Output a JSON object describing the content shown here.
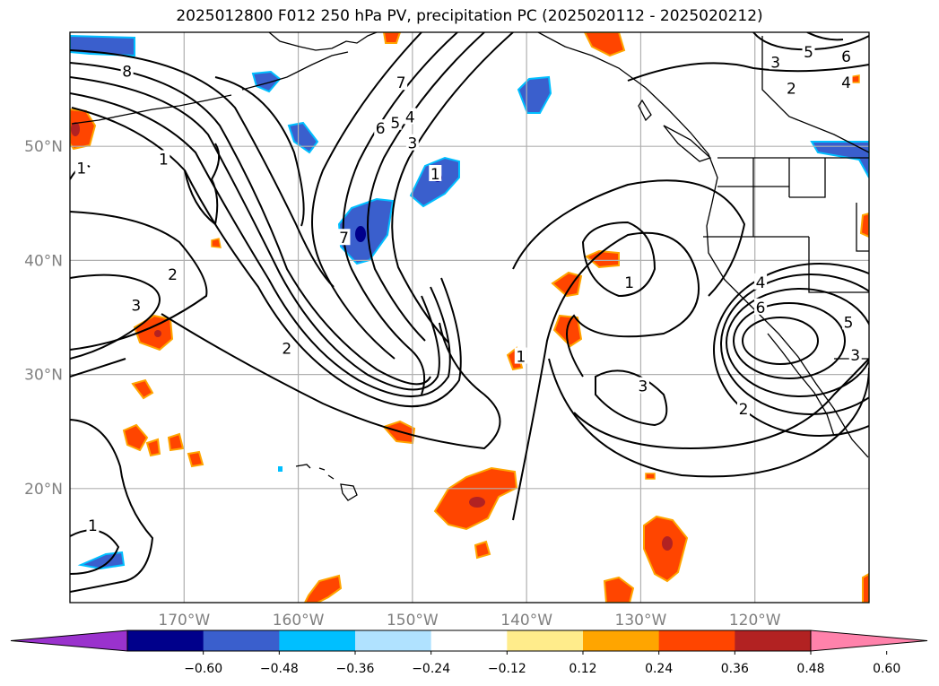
{
  "title": "2025012800 F012 250 hPa PV, precipitation PC (2025020112 - 2025020212)",
  "map": {
    "lon_range": [
      -180,
      -110
    ],
    "lat_range": [
      10,
      60
    ],
    "lat_ticks": [
      {
        "value": 20,
        "label": "20°N"
      },
      {
        "value": 30,
        "label": "30°N"
      },
      {
        "value": 40,
        "label": "40°N"
      },
      {
        "value": 50,
        "label": "50°N"
      }
    ],
    "lon_ticks": [
      {
        "value": -170,
        "label": "170°W"
      },
      {
        "value": -160,
        "label": "160°W"
      },
      {
        "value": -150,
        "label": "150°W"
      },
      {
        "value": -140,
        "label": "140°W"
      },
      {
        "value": -130,
        "label": "130°W"
      },
      {
        "value": -120,
        "label": "120°W"
      }
    ],
    "grid": true
  },
  "pv_contour_labels": [
    {
      "text": "8",
      "lon": -175,
      "lat": 56.5
    },
    {
      "text": "7",
      "lon": -151,
      "lat": 55.5
    },
    {
      "text": "6",
      "lon": -152.8,
      "lat": 51.5
    },
    {
      "text": "5",
      "lon": -151.5,
      "lat": 52.0
    },
    {
      "text": "4",
      "lon": -150.2,
      "lat": 52.5
    },
    {
      "text": "3",
      "lon": -150.0,
      "lat": 50.2
    },
    {
      "text": "1",
      "lon": -148.0,
      "lat": 47.5
    },
    {
      "text": "1",
      "lon": -171.8,
      "lat": 48.8
    },
    {
      "text": "1",
      "lon": -179.0,
      "lat": 48.0
    },
    {
      "text": "7",
      "lon": -156.0,
      "lat": 41.9
    },
    {
      "text": "2",
      "lon": -171.0,
      "lat": 38.7
    },
    {
      "text": "3",
      "lon": -174.2,
      "lat": 36.0
    },
    {
      "text": "2",
      "lon": -161.0,
      "lat": 32.2
    },
    {
      "text": "1",
      "lon": -140.5,
      "lat": 31.5
    },
    {
      "text": "1",
      "lon": -131.0,
      "lat": 38.0
    },
    {
      "text": "3",
      "lon": -129.8,
      "lat": 28.9
    },
    {
      "text": "2",
      "lon": -121.0,
      "lat": 26.9
    },
    {
      "text": "4",
      "lon": -119.5,
      "lat": 38.0
    },
    {
      "text": "6",
      "lon": -119.5,
      "lat": 35.8
    },
    {
      "text": "5",
      "lon": -111.8,
      "lat": 34.5
    },
    {
      "text": "3",
      "lon": -111.2,
      "lat": 31.6
    },
    {
      "text": "3",
      "lon": -118.2,
      "lat": 57.3
    },
    {
      "text": "5",
      "lon": -115.3,
      "lat": 58.2
    },
    {
      "text": "6",
      "lon": -112.0,
      "lat": 57.8
    },
    {
      "text": "2",
      "lon": -116.8,
      "lat": 55.0
    },
    {
      "text": "4",
      "lon": -112.0,
      "lat": 55.5
    },
    {
      "text": "1",
      "lon": -178.0,
      "lat": 16.7
    }
  ],
  "colorbar": {
    "ticks": [
      "−0.60",
      "−0.48",
      "−0.36",
      "−0.24",
      "−0.12",
      "0.12",
      "0.24",
      "0.36",
      "0.48",
      "0.60"
    ],
    "colors": [
      "#9a32cd",
      "#00008b",
      "#3a5fcd",
      "#00bfff",
      "#b0e2ff",
      "#ffffff",
      "#ffec8b",
      "#ffa500",
      "#ff4500",
      "#b22222",
      "#ff82ab"
    ]
  },
  "shading_colors": {
    "neg_dark": "#00008b",
    "neg_mid": "#3a5fcd",
    "neg_light": "#00bfff",
    "neg_pale": "#b0e2ff",
    "pos_pale": "#ffec8b",
    "pos_light": "#ffa500",
    "pos_mid": "#ff4500",
    "pos_dark": "#b22222"
  }
}
